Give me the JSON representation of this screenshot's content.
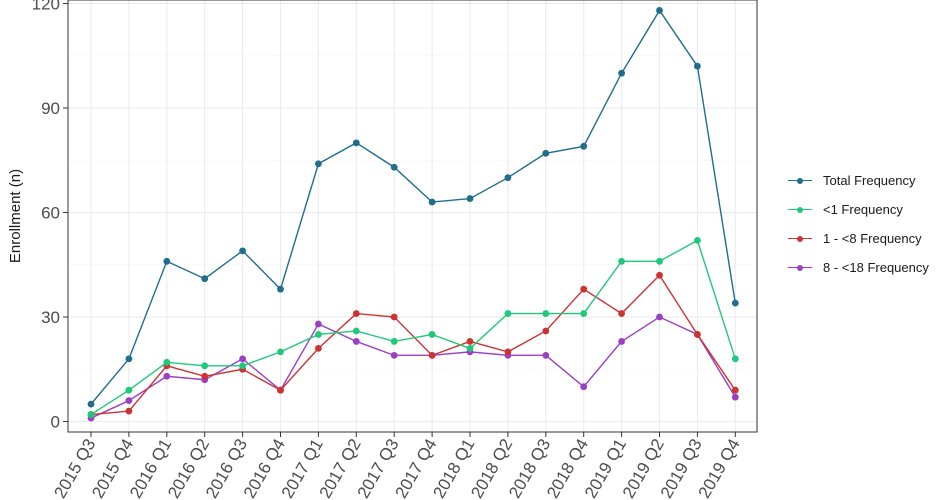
{
  "chart_data": {
    "type": "line",
    "ylabel": "Enrollment (n)",
    "xlabel": "",
    "ylim": [
      -3,
      121
    ],
    "y_ticks": [
      0,
      30,
      60,
      90,
      120
    ],
    "grid": true,
    "legend_position": "right",
    "categories": [
      "2015 Q3",
      "2015 Q4",
      "2016 Q1",
      "2016 Q2",
      "2016 Q3",
      "2016 Q4",
      "2017 Q1",
      "2017 Q2",
      "2017 Q3",
      "2017 Q4",
      "2018 Q1",
      "2018 Q2",
      "2018 Q3",
      "2018 Q4",
      "2019 Q1",
      "2019 Q2",
      "2019 Q3",
      "2019 Q4"
    ],
    "series": [
      {
        "name": "Total Frequency",
        "color": "#1f6e8c",
        "values": [
          5,
          18,
          46,
          41,
          49,
          38,
          74,
          80,
          73,
          63,
          64,
          70,
          77,
          79,
          100,
          118,
          102,
          34
        ]
      },
      {
        "name": "<1 Frequency",
        "color": "#1fc97a",
        "values": [
          2,
          9,
          17,
          16,
          16,
          20,
          25,
          26,
          23,
          25,
          21,
          31,
          31,
          31,
          46,
          46,
          52,
          18
        ]
      },
      {
        "name": "1 - <8 Frequency",
        "color": "#cc3333",
        "values": [
          2,
          3,
          16,
          13,
          15,
          9,
          21,
          31,
          30,
          19,
          23,
          20,
          26,
          38,
          31,
          42,
          25,
          9
        ]
      },
      {
        "name": "8 - <18 Frequency",
        "color": "#9b3fc6",
        "values": [
          1,
          6,
          13,
          12,
          18,
          9,
          28,
          23,
          19,
          19,
          20,
          19,
          19,
          10,
          23,
          30,
          25,
          7
        ]
      }
    ]
  }
}
